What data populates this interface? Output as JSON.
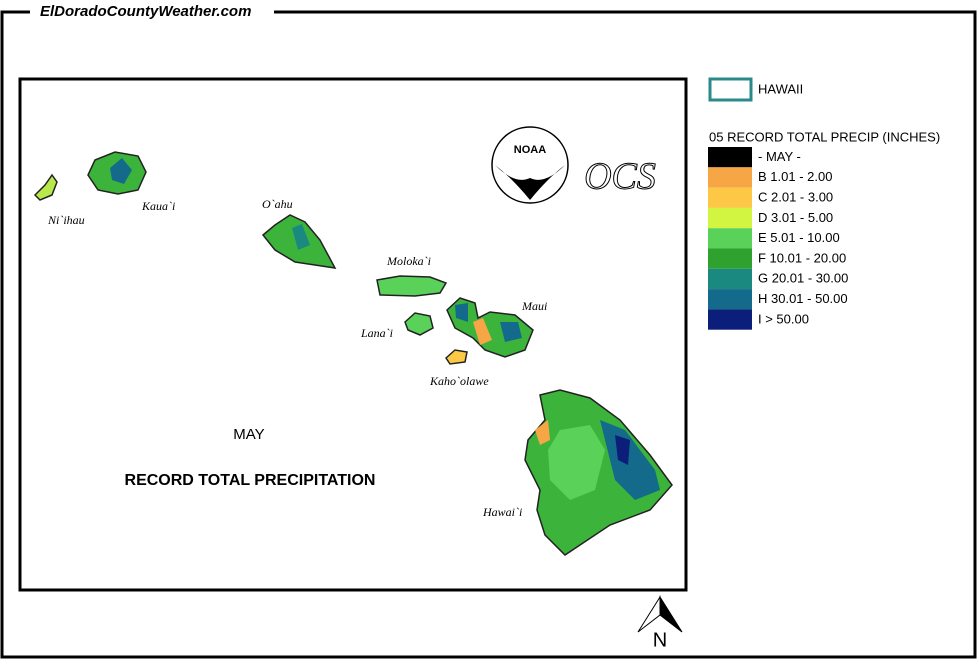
{
  "header": {
    "site": "ElDoradoCountyWeather.com"
  },
  "map": {
    "month": "MAY",
    "title": "RECORD TOTAL PRECIPITATION",
    "islands": [
      "Ni`ihau",
      "Kaua`i",
      "O`ahu",
      "Moloka`i",
      "Lana`i",
      "Maui",
      "Kaho`olawe",
      "Hawai`i"
    ],
    "logos": {
      "noaa": "NOAA",
      "ocs": "OCS"
    },
    "north": "N"
  },
  "legend": {
    "outline_label": "HAWAII",
    "title": "05 RECORD TOTAL PRECIP (INCHES)",
    "items": [
      {
        "label": "- MAY -",
        "color": "#000000"
      },
      {
        "label": "B 1.01 - 2.00",
        "color": "#f7a645"
      },
      {
        "label": "C 2.01 - 3.00",
        "color": "#fcc846"
      },
      {
        "label": "D 3.01 - 5.00",
        "color": "#d2f542"
      },
      {
        "label": "E 5.01 - 10.00",
        "color": "#5ad25a"
      },
      {
        "label": "F 10.01 - 20.00",
        "color": "#2ea12e"
      },
      {
        "label": "G 20.01 - 30.00",
        "color": "#1a8a80"
      },
      {
        "label": "H 30.01 - 50.00",
        "color": "#136a8a"
      },
      {
        "label": "I > 50.00",
        "color": "#0a1e7a"
      }
    ]
  }
}
